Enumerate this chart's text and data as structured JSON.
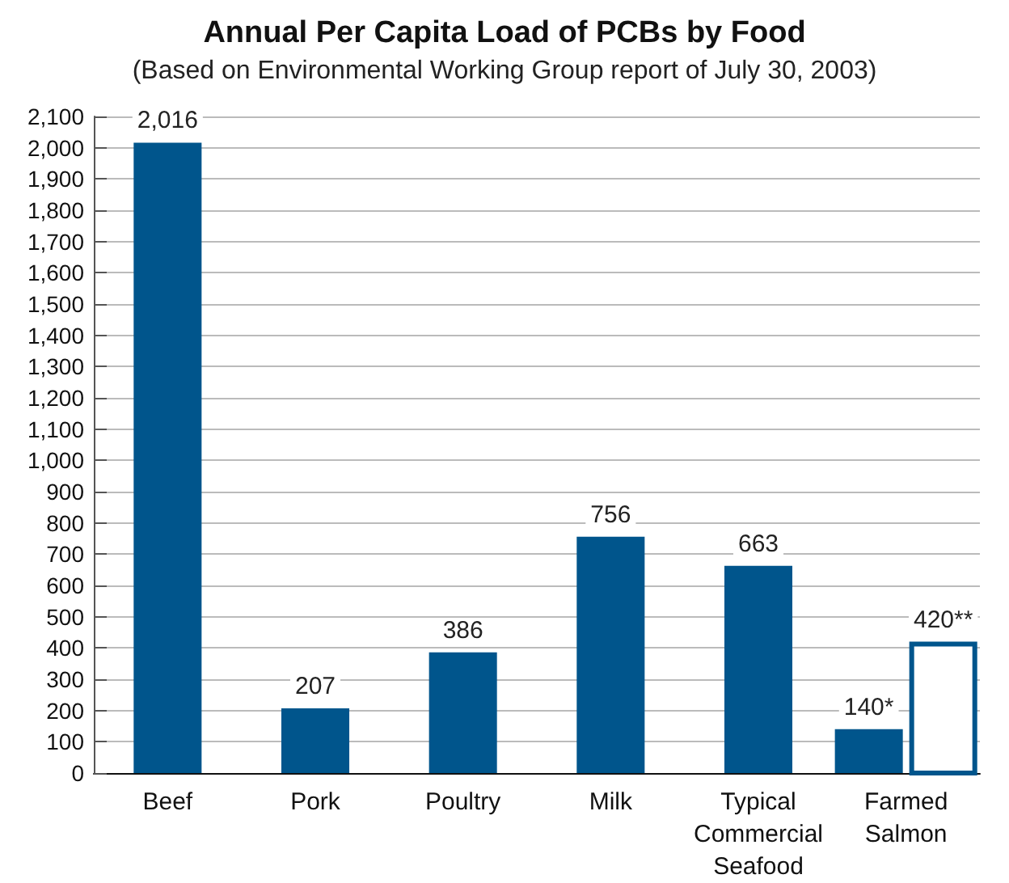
{
  "chart_data": {
    "type": "bar",
    "title": "Annual Per Capita Load of PCBs by Food",
    "subtitle": "(Based on Environmental Working Group report of July 30, 2003)",
    "categories": [
      "Beef",
      "Pork",
      "Poultry",
      "Milk",
      "Typical Commercial Seafood",
      "Farmed Salmon"
    ],
    "series": [
      {
        "color": "#00558c",
        "values": [
          2016,
          207,
          386,
          756,
          663,
          140
        ],
        "value_labels": [
          "2,016",
          "207",
          "386",
          "756",
          "663",
          "140*"
        ]
      },
      {
        "color": "#00558c",
        "values": [
          null,
          null,
          null,
          null,
          null,
          420
        ],
        "value_labels": [
          null,
          null,
          null,
          null,
          null,
          "420**"
        ]
      }
    ],
    "ylim": [
      0,
      2100
    ],
    "yticks": [
      {
        "value": 0,
        "label": "0"
      },
      {
        "value": 100,
        "label": "100"
      },
      {
        "value": 200,
        "label": "200"
      },
      {
        "value": 300,
        "label": "300"
      },
      {
        "value": 400,
        "label": "400"
      },
      {
        "value": 500,
        "label": "500"
      },
      {
        "value": 600,
        "label": "600"
      },
      {
        "value": 700,
        "label": "700"
      },
      {
        "value": 800,
        "label": "800"
      },
      {
        "value": 900,
        "label": "900"
      },
      {
        "value": 1000,
        "label": "1,000"
      },
      {
        "value": 1100,
        "label": "1,100"
      },
      {
        "value": 1200,
        "label": "1,200"
      },
      {
        "value": 1300,
        "label": "1,300"
      },
      {
        "value": 1400,
        "label": "1,400"
      },
      {
        "value": 1500,
        "label": "1,500"
      },
      {
        "value": 1600,
        "label": "1,600"
      },
      {
        "value": 1700,
        "label": "1,700"
      },
      {
        "value": 1800,
        "label": "1,800"
      },
      {
        "value": 1900,
        "label": "1,900"
      },
      {
        "value": 2000,
        "label": "2,000"
      },
      {
        "value": 2100,
        "label": "2,100"
      }
    ],
    "grid": "y"
  }
}
